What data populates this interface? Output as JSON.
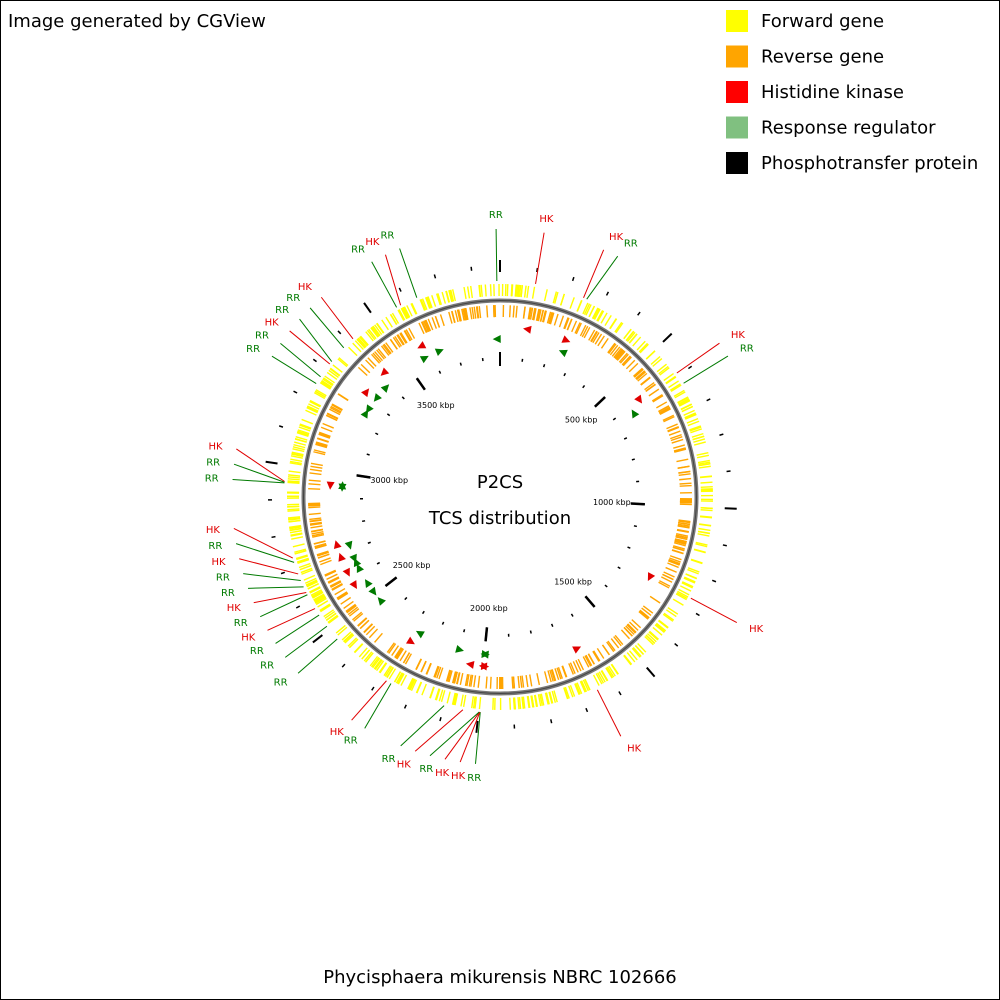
{
  "header": {
    "credit": "Image generated by CGView"
  },
  "legend": [
    {
      "label": "Forward gene",
      "color": "#ffff00"
    },
    {
      "label": "Reverse gene",
      "color": "#ffa500"
    },
    {
      "label": "Histidine kinase",
      "color": "#ff0000"
    },
    {
      "label": "Response regulator",
      "color": "#80c080"
    },
    {
      "label": "Phosphotransfer protein",
      "color": "#000000"
    }
  ],
  "map": {
    "title": "P2CS",
    "subtitle": "TCS distribution",
    "range": [
      0,
      3877
    ],
    "ticks": [
      {
        "value": 500,
        "label": "500 kbp"
      },
      {
        "value": 1000,
        "label": "1000 kbp"
      },
      {
        "value": 1500,
        "label": "1500 kbp"
      },
      {
        "value": 2000,
        "label": "2000 kbp"
      },
      {
        "value": 2500,
        "label": "2500 kbp"
      },
      {
        "value": 3000,
        "label": "3000 kbp"
      },
      {
        "value": 3500,
        "label": "3500 kbp"
      }
    ],
    "colors": {
      "HK": "#e00000",
      "RR": "#007a00"
    },
    "features": [
      {
        "label": "HK",
        "position": 102
      },
      {
        "label": "HK",
        "position": 245
      },
      {
        "label": "RR",
        "position": 255
      },
      {
        "label": "HK",
        "position": 592
      },
      {
        "label": "RR",
        "position": 627
      },
      {
        "label": "HK",
        "position": 1270
      },
      {
        "label": "HK",
        "position": 1650
      },
      {
        "label": "RR",
        "position": 1995
      },
      {
        "label": "HK",
        "position": 1996
      },
      {
        "label": "HK",
        "position": 1997
      },
      {
        "label": "RR",
        "position": 1998
      },
      {
        "label": "HK",
        "position": 2045
      },
      {
        "label": "RR",
        "position": 2100
      },
      {
        "label": "RR",
        "position": 2265
      },
      {
        "label": "HK",
        "position": 2280
      },
      {
        "label": "RR",
        "position": 2465
      },
      {
        "label": "RR",
        "position": 2512
      },
      {
        "label": "RR",
        "position": 2551
      },
      {
        "label": "HK",
        "position": 2573
      },
      {
        "label": "RR",
        "position": 2618
      },
      {
        "label": "HK",
        "position": 2625
      },
      {
        "label": "RR",
        "position": 2643
      },
      {
        "label": "RR",
        "position": 2663
      },
      {
        "label": "HK",
        "position": 2683
      },
      {
        "label": "RR",
        "position": 2718
      },
      {
        "label": "HK",
        "position": 2731
      },
      {
        "label": "RR",
        "position": 2948
      },
      {
        "label": "RR",
        "position": 2950
      },
      {
        "label": "HK",
        "position": 2952
      },
      {
        "label": "RR",
        "position": 3249
      },
      {
        "label": "RR",
        "position": 3272
      },
      {
        "label": "HK",
        "position": 3317
      },
      {
        "label": "RR",
        "position": 3326
      },
      {
        "label": "RR",
        "position": 3378
      },
      {
        "label": "HK",
        "position": 3415
      },
      {
        "label": "RR",
        "position": 3569
      },
      {
        "label": "HK",
        "position": 3582
      },
      {
        "label": "RR",
        "position": 3633
      },
      {
        "label": "RR",
        "position": 3868
      }
    ]
  },
  "footer": {
    "organism": "Phycisphaera mikurensis NBRC 102666"
  }
}
